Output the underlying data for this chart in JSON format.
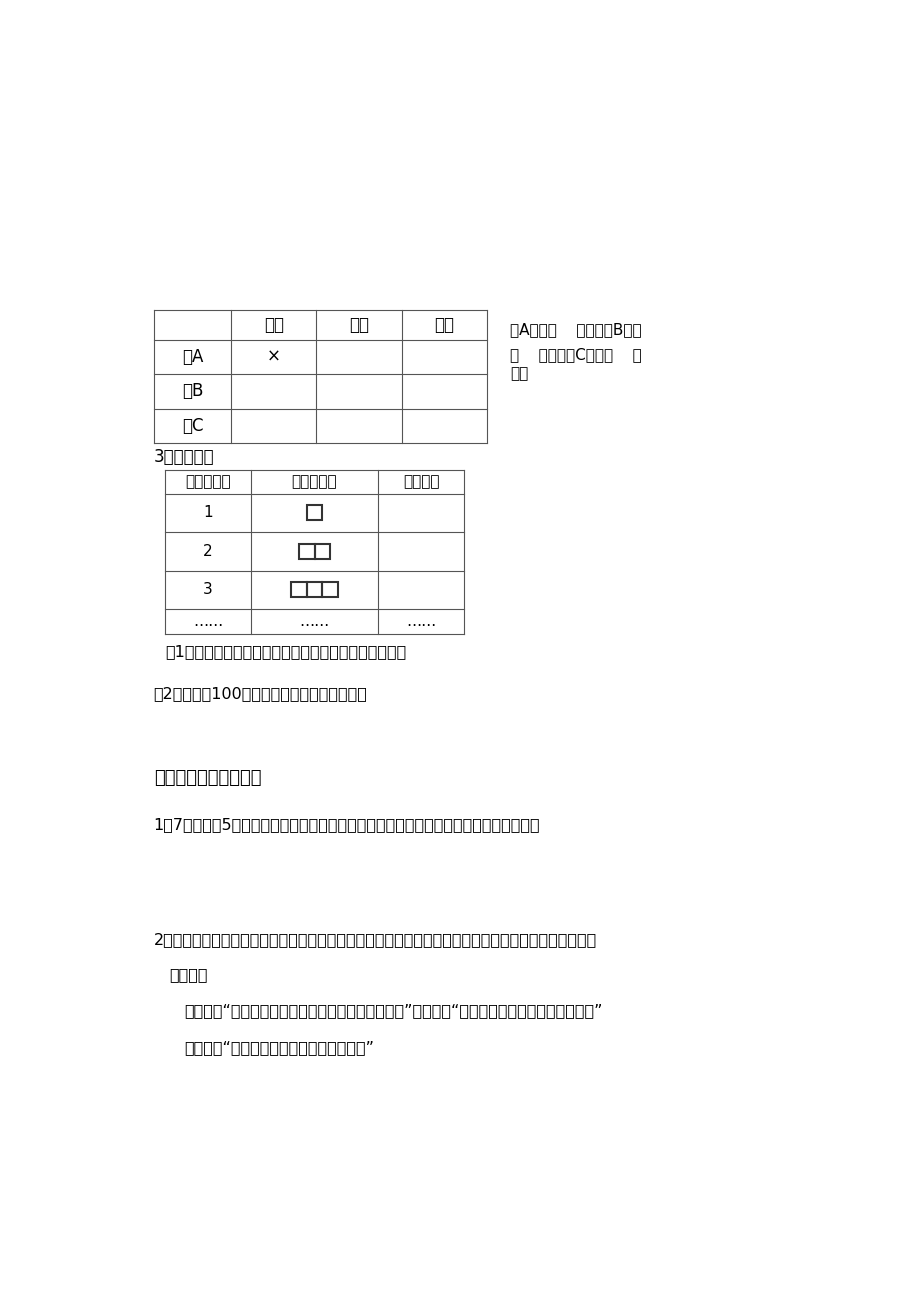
{
  "bg_color": "#ffffff",
  "text_color": "#000000",
  "table1_cols": [
    "",
    "象棋",
    "绘画",
    "舞蹈"
  ],
  "table1_rows": [
    "小A",
    "小B",
    "小C"
  ],
  "x_mark": "×",
  "side_text_line1": "小A参加（    ）组，小B参加",
  "side_text_line2": "（    ）组，小C参加（    ）",
  "side_text_line3": "组。",
  "sec2_label": "3、探究题：",
  "table2_headers": [
    "正方形个数",
    "摆成的图形",
    "小棒根数"
  ],
  "table2_rows_num": [
    "1",
    "2",
    "3",
    "……"
  ],
  "table2_dots": "……",
  "q1": "（1）你发现了什么规律？用含有字母的式子表示出来。",
  "q2": "（2）如果摆100个正方形，需要多少根小棒？",
  "sec3_title": "三、分析问题我在行。",
  "sec3_q1": "1、7个人住进5个房间，至少要有两个人住同一间房。为什么？（请你用图示表示出来）",
  "sec3_q2a": "2、运动场上甲、乙、丙、丁四个班正在进行接力赛，对于比赛胜负，在一旁观看的张明、王芳、李浩进",
  "sec3_q2b": "行猜测：",
  "sec3_q2c": "张明说：“我看甲班只能得第三、第一肯定是丙班。”王芳说：“丙班只能得第二，乙班得第一。”",
  "sec3_q2d": "李浩说：“肯定丁班得第二，甲班得第一。”"
}
